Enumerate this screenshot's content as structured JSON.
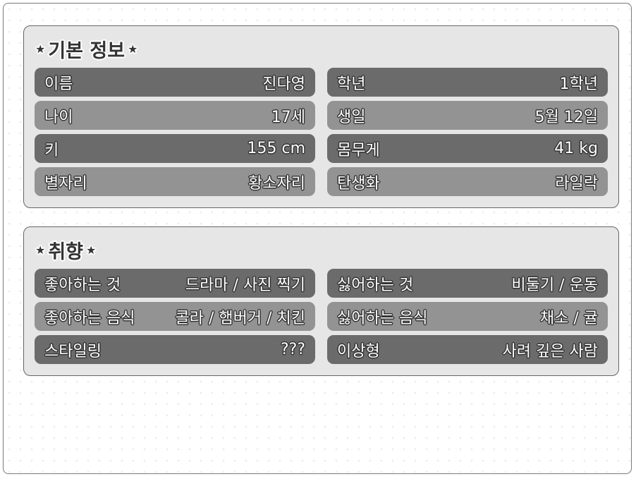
{
  "basic": {
    "title": "기본 정보",
    "star_left": "★",
    "star_right": "★",
    "rows": [
      {
        "label": "이름",
        "value": "진다영"
      },
      {
        "label": "학년",
        "value": "1학년"
      },
      {
        "label": "나이",
        "value": "17세"
      },
      {
        "label": "생일",
        "value": "5월 12일"
      },
      {
        "label": "키",
        "value": "155 cm"
      },
      {
        "label": "몸무게",
        "value": "41 kg"
      },
      {
        "label": "별자리",
        "value": "황소자리"
      },
      {
        "label": "탄생화",
        "value": "라일락"
      }
    ]
  },
  "pref": {
    "title": "취향",
    "star_left": "★",
    "star_right": "★",
    "rows": [
      {
        "label": "좋아하는 것",
        "value": "드라마 / 사진 찍기"
      },
      {
        "label": "싫어하는 것",
        "value": "비둘기 / 운동"
      },
      {
        "label": "좋아하는 음식",
        "value": "콜라 / 햄버거 / 치킨"
      },
      {
        "label": "싫어하는 음식",
        "value": "채소 / 귤"
      },
      {
        "label": "스타일링",
        "value": "???"
      },
      {
        "label": "이상형",
        "value": "사려 깊은 사람"
      }
    ]
  },
  "colors": {
    "dark_row": "#6b6b6b",
    "light_row": "#939393",
    "panel": "#e6e6e6"
  }
}
